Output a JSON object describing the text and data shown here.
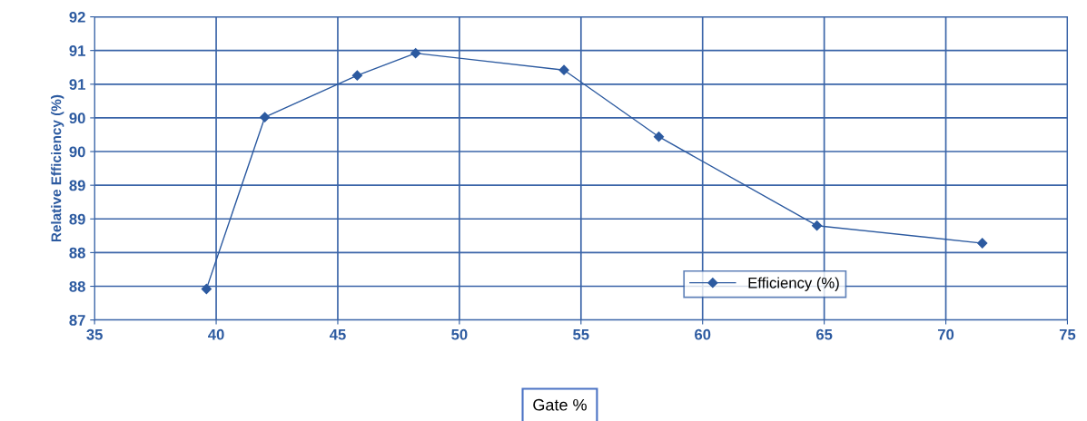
{
  "chart_data": {
    "type": "line",
    "xlabel": "Gate %",
    "ylabel": "Relative Efficiency (%)",
    "x": [
      39.6,
      42.0,
      45.8,
      48.2,
      54.3,
      58.2,
      64.7,
      71.5
    ],
    "series": [
      {
        "name": "Efficiency (%)",
        "color": "#2c5aa0",
        "values": [
          87.86,
          90.41,
          91.03,
          91.36,
          91.11,
          90.12,
          88.8,
          88.54
        ]
      }
    ],
    "xlim": [
      35,
      75
    ],
    "xticks": [
      35,
      40,
      45,
      50,
      55,
      60,
      65,
      70,
      75
    ],
    "ylim": [
      87.4,
      91.9
    ],
    "yticks": [
      {
        "value": 87.4,
        "label": "87"
      },
      {
        "value": 87.9,
        "label": "88"
      },
      {
        "value": 88.4,
        "label": "88"
      },
      {
        "value": 88.9,
        "label": "89"
      },
      {
        "value": 89.4,
        "label": "89"
      },
      {
        "value": 89.9,
        "label": "90"
      },
      {
        "value": 90.4,
        "label": "90"
      },
      {
        "value": 90.9,
        "label": "91"
      },
      {
        "value": 91.4,
        "label": "91"
      },
      {
        "value": 91.9,
        "label": "92"
      }
    ],
    "grid": true,
    "legend": "bottom right",
    "marker": "diamond",
    "line_style": "solid"
  }
}
